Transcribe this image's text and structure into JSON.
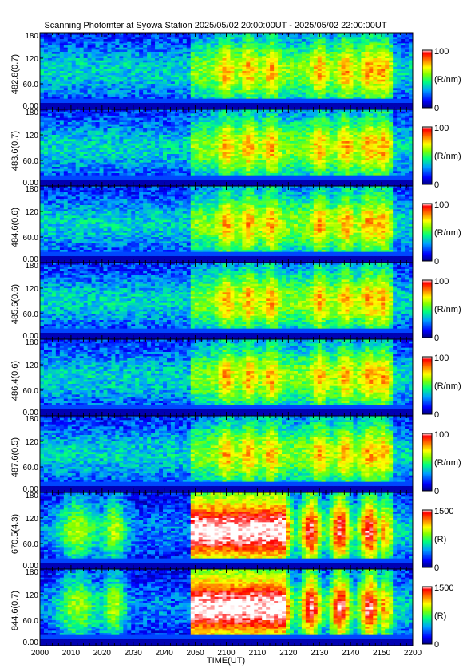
{
  "title": "Scanning Photomter at Syowa Station 2025/05/02 20:00:00UT - 2025/05/02 22:00:00UT",
  "chart_data": {
    "type": "heatmap",
    "x_axis": {
      "label": "TIME(UT)",
      "range": [
        "2000",
        "2200"
      ],
      "ticks": [
        "2000",
        "2010",
        "2020",
        "2030",
        "2040",
        "2050",
        "2100",
        "2110",
        "2120",
        "2130",
        "2140",
        "2150",
        "2200"
      ]
    },
    "y_ticks": [
      "0.00",
      "60.0",
      "120",
      "180"
    ],
    "y_range": [
      0,
      180
    ],
    "colormap": [
      "#000080",
      "#0000ff",
      "#00a0ff",
      "#00ff80",
      "#80ff00",
      "#ffff00",
      "#ff8000",
      "#ff0000",
      "#ffffff"
    ],
    "panels": [
      {
        "channel": "482.8(0.7)",
        "unit": "(R/nm)",
        "cbar_min": "0",
        "cbar_max": "100"
      },
      {
        "channel": "483.6(0.7)",
        "unit": "(R/nm)",
        "cbar_min": "0",
        "cbar_max": "100"
      },
      {
        "channel": "484.6(0.6)",
        "unit": "(R/nm)",
        "cbar_min": "0",
        "cbar_max": "100"
      },
      {
        "channel": "485.6(0.6)",
        "unit": "(R/nm)",
        "cbar_min": "0",
        "cbar_max": "100"
      },
      {
        "channel": "486.4(0.6)",
        "unit": "(R/nm)",
        "cbar_min": "0",
        "cbar_max": "100"
      },
      {
        "channel": "487.6(0.5)",
        "unit": "(R/nm)",
        "cbar_min": "0",
        "cbar_max": "100"
      },
      {
        "channel": "670.5(4.3)",
        "unit": "(R)",
        "cbar_min": "0",
        "cbar_max": "1500"
      },
      {
        "channel": "844.6(0.7)",
        "unit": "(R)",
        "cbar_min": "0",
        "cbar_max": "1500"
      }
    ]
  }
}
